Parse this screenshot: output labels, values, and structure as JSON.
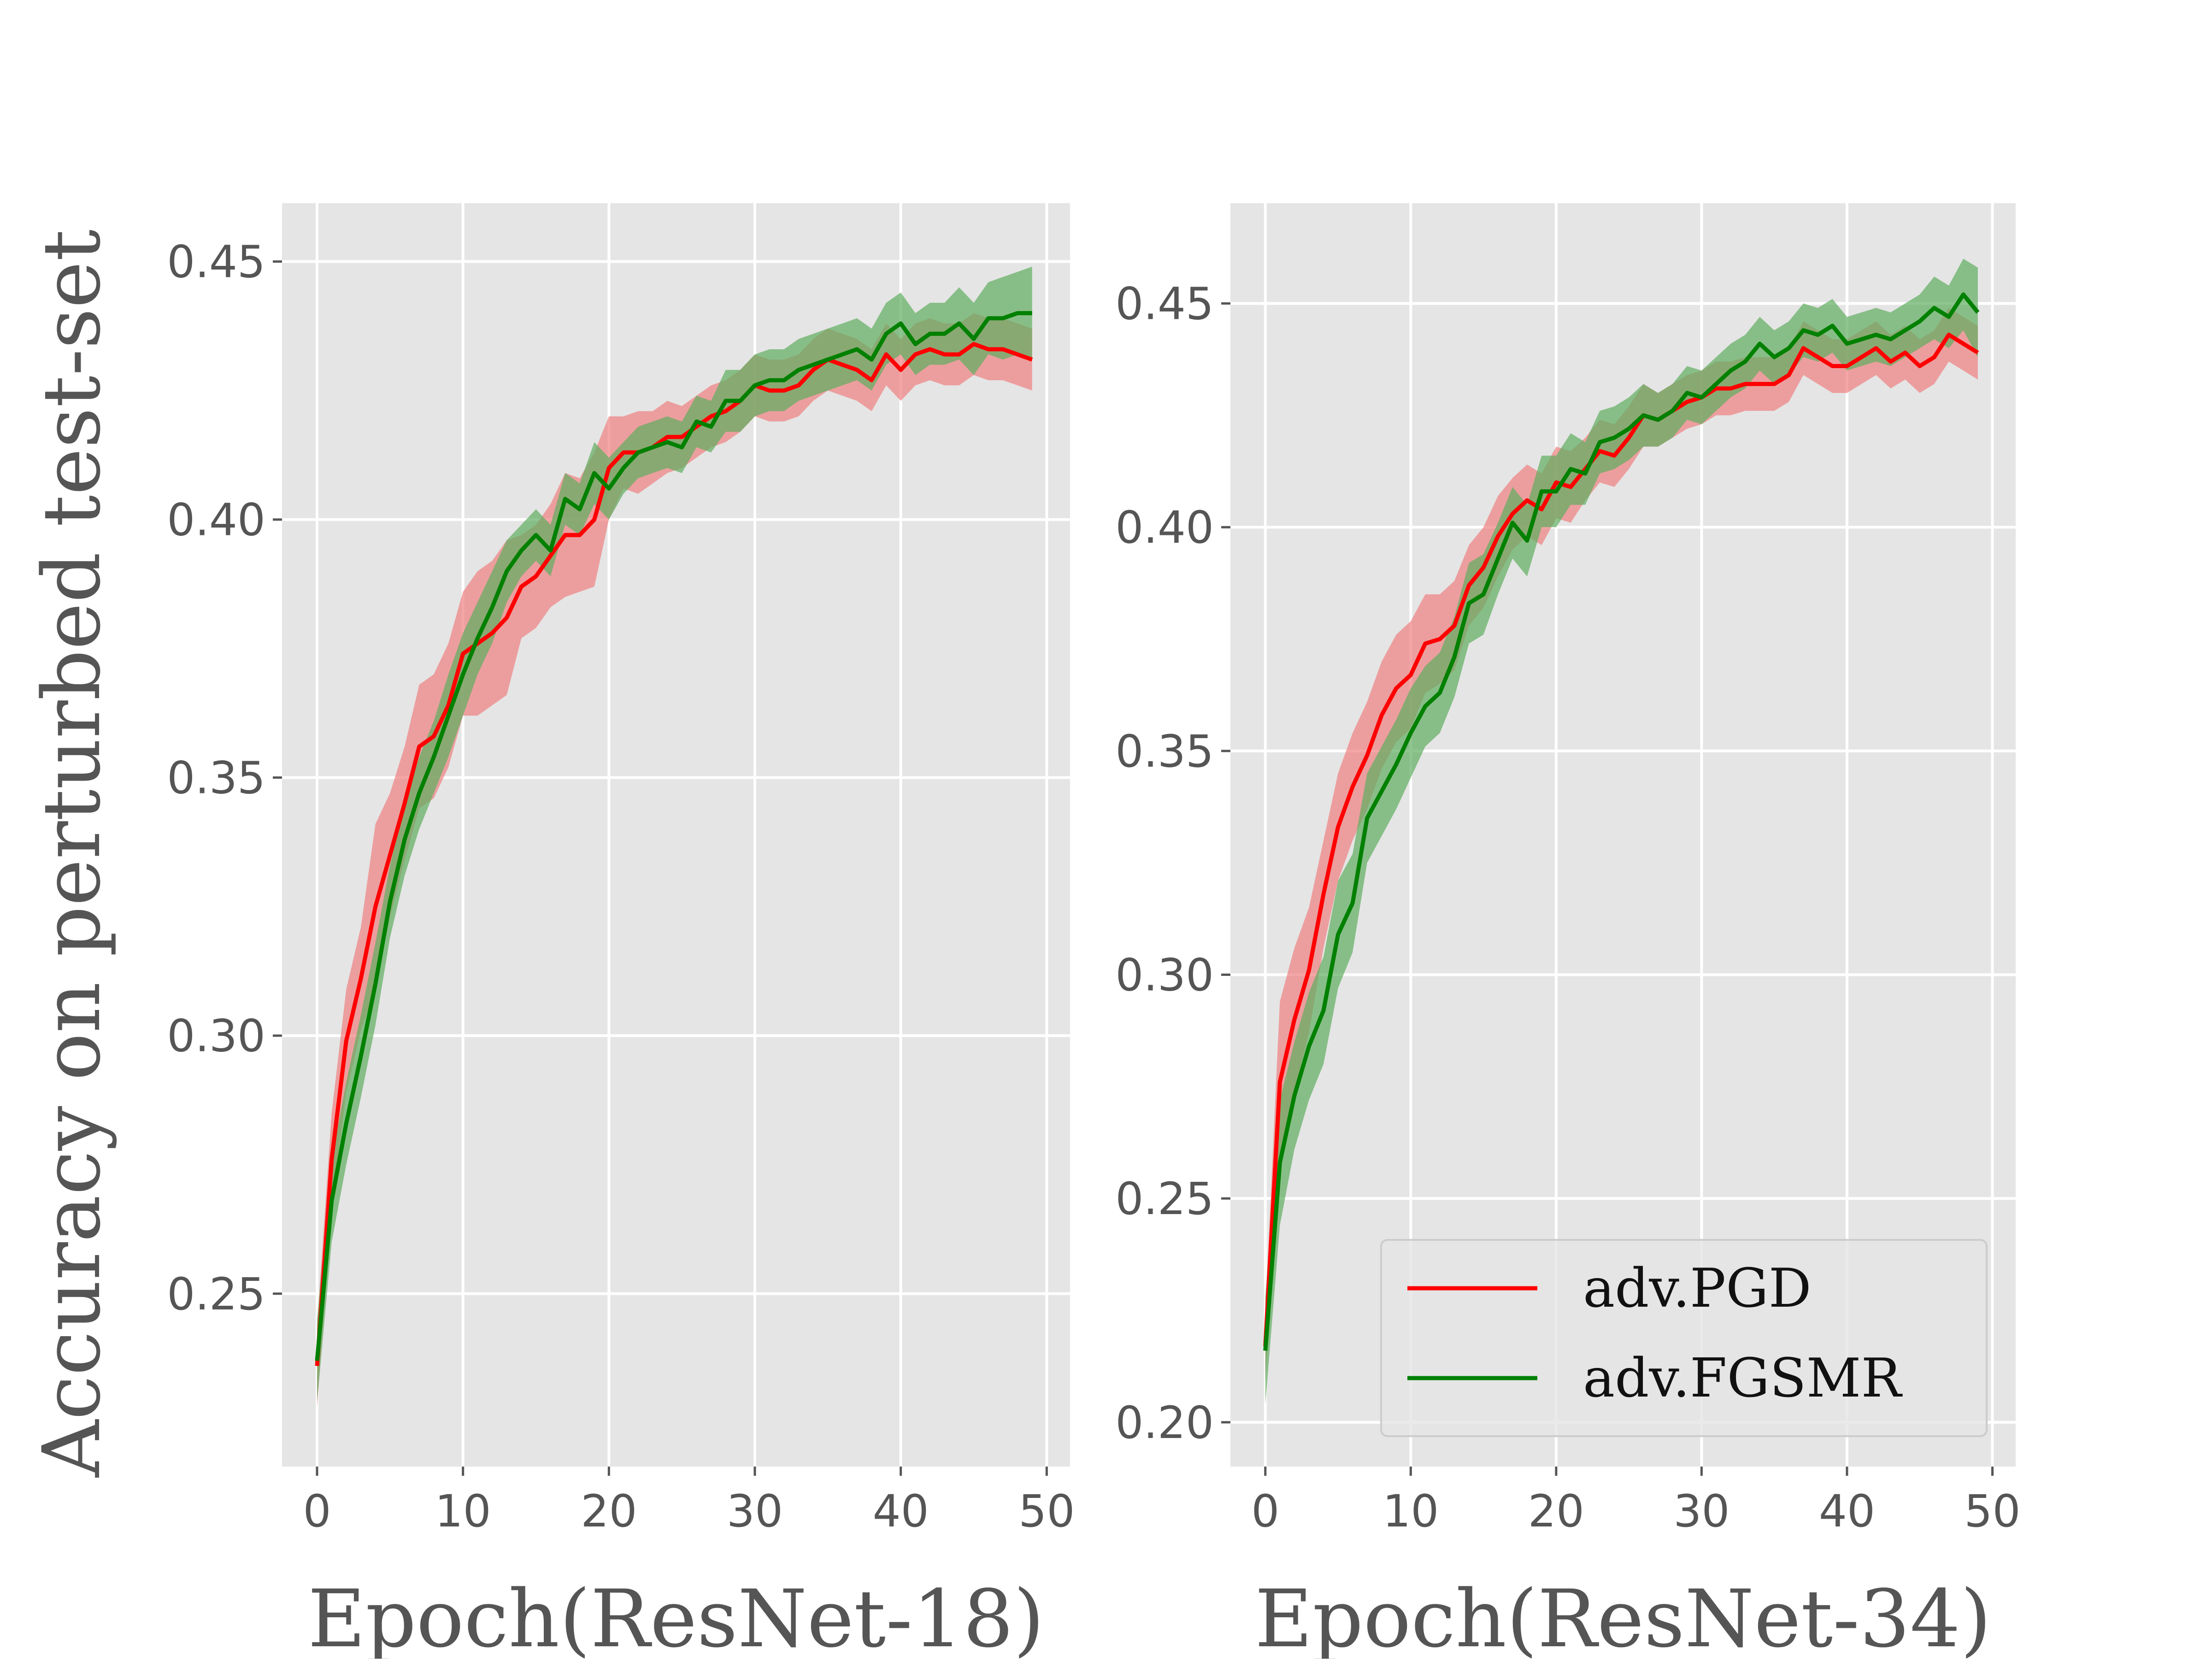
{
  "chart_data": [
    {
      "type": "line",
      "xlabel": "Epoch(ResNet-18)",
      "ylabel": "Accuracy on perturbed test-set",
      "xlim": [
        -2.4,
        51.6
      ],
      "ylim": [
        0.2165,
        0.4613
      ],
      "xticks": [
        0,
        10,
        20,
        30,
        40,
        50
      ],
      "xtick_labels": [
        "0",
        "10",
        "20",
        "30",
        "40",
        "50"
      ],
      "yticks": [
        0.25,
        0.3,
        0.35,
        0.4,
        0.45
      ],
      "ytick_labels": [
        "0.25",
        "0.30",
        "0.35",
        "0.40",
        "0.45"
      ],
      "grid": true,
      "x": [
        0,
        1,
        2,
        3,
        4,
        5,
        6,
        7,
        8,
        9,
        10,
        11,
        12,
        13,
        14,
        15,
        16,
        17,
        18,
        19,
        20,
        21,
        22,
        23,
        24,
        25,
        26,
        27,
        28,
        29,
        30,
        31,
        32,
        33,
        34,
        35,
        36,
        37,
        38,
        39,
        40,
        41,
        42,
        43,
        44,
        45,
        46,
        47,
        48,
        49
      ],
      "series": [
        {
          "name": "adv.PGD",
          "color": "#ff0000",
          "band_color": "#f08080",
          "values": [
            0.236,
            0.276,
            0.299,
            0.311,
            0.325,
            0.335,
            0.345,
            0.356,
            0.358,
            0.364,
            0.374,
            0.376,
            0.378,
            0.381,
            0.387,
            0.389,
            0.393,
            0.397,
            0.397,
            0.4,
            0.41,
            0.413,
            0.413,
            0.414,
            0.416,
            0.416,
            0.418,
            0.42,
            0.421,
            0.423,
            0.426,
            0.425,
            0.425,
            0.426,
            0.429,
            0.431,
            0.43,
            0.429,
            0.427,
            0.432,
            0.429,
            0.432,
            0.433,
            0.432,
            0.432,
            0.434,
            0.433,
            0.433,
            0.432,
            0.431
          ],
          "band": [
            0.008,
            0.009,
            0.01,
            0.01,
            0.016,
            0.012,
            0.011,
            0.012,
            0.012,
            0.012,
            0.012,
            0.014,
            0.014,
            0.015,
            0.01,
            0.01,
            0.01,
            0.012,
            0.011,
            0.013,
            0.01,
            0.007,
            0.008,
            0.007,
            0.007,
            0.006,
            0.006,
            0.006,
            0.006,
            0.006,
            0.006,
            0.006,
            0.006,
            0.006,
            0.006,
            0.006,
            0.006,
            0.006,
            0.006,
            0.006,
            0.006,
            0.006,
            0.006,
            0.006,
            0.006,
            0.006,
            0.006,
            0.006,
            0.006,
            0.006
          ]
        },
        {
          "name": "adv.FGSMR",
          "color": "#008000",
          "band_color": "#5fae5f",
          "values": [
            0.237,
            0.268,
            0.283,
            0.296,
            0.31,
            0.326,
            0.338,
            0.347,
            0.354,
            0.362,
            0.37,
            0.377,
            0.383,
            0.39,
            0.394,
            0.397,
            0.394,
            0.404,
            0.402,
            0.409,
            0.406,
            0.41,
            0.413,
            0.414,
            0.415,
            0.414,
            0.419,
            0.418,
            0.423,
            0.423,
            0.426,
            0.427,
            0.427,
            0.429,
            0.43,
            0.431,
            0.432,
            0.433,
            0.431,
            0.436,
            0.438,
            0.434,
            0.436,
            0.436,
            0.438,
            0.435,
            0.439,
            0.439,
            0.44,
            0.44
          ],
          "band": [
            0.008,
            0.008,
            0.008,
            0.008,
            0.008,
            0.007,
            0.007,
            0.007,
            0.007,
            0.008,
            0.008,
            0.007,
            0.007,
            0.006,
            0.005,
            0.005,
            0.005,
            0.005,
            0.005,
            0.006,
            0.006,
            0.005,
            0.005,
            0.005,
            0.005,
            0.005,
            0.005,
            0.005,
            0.006,
            0.006,
            0.006,
            0.006,
            0.006,
            0.006,
            0.006,
            0.006,
            0.006,
            0.006,
            0.006,
            0.006,
            0.006,
            0.006,
            0.006,
            0.006,
            0.007,
            0.007,
            0.007,
            0.008,
            0.008,
            0.009
          ]
        }
      ]
    },
    {
      "type": "line",
      "xlabel": "Epoch(ResNet-34)",
      "ylabel": "",
      "xlim": [
        -2.4,
        51.6
      ],
      "ylim": [
        0.1901,
        0.4724
      ],
      "xticks": [
        0,
        10,
        20,
        30,
        40,
        50
      ],
      "xtick_labels": [
        "0",
        "10",
        "20",
        "30",
        "40",
        "50"
      ],
      "yticks": [
        0.2,
        0.25,
        0.3,
        0.35,
        0.4,
        0.45
      ],
      "ytick_labels": [
        "0.20",
        "0.25",
        "0.30",
        "0.35",
        "0.40",
        "0.45"
      ],
      "grid": true,
      "legend": {
        "position": "lower-right",
        "entries": [
          "adv.PGD",
          "adv.FGSMR"
        ]
      },
      "x": [
        0,
        1,
        2,
        3,
        4,
        5,
        6,
        7,
        8,
        9,
        10,
        11,
        12,
        13,
        14,
        15,
        16,
        17,
        18,
        19,
        20,
        21,
        22,
        23,
        24,
        25,
        26,
        27,
        28,
        29,
        30,
        31,
        32,
        33,
        34,
        35,
        36,
        37,
        38,
        39,
        40,
        41,
        42,
        43,
        44,
        45,
        46,
        47,
        48,
        49
      ],
      "series": [
        {
          "name": "adv.PGD",
          "color": "#ff0000",
          "band_color": "#f08080",
          "values": [
            0.217,
            0.276,
            0.29,
            0.301,
            0.318,
            0.333,
            0.342,
            0.349,
            0.358,
            0.364,
            0.367,
            0.374,
            0.375,
            0.378,
            0.387,
            0.391,
            0.398,
            0.403,
            0.406,
            0.404,
            0.41,
            0.409,
            0.413,
            0.417,
            0.416,
            0.42,
            0.425,
            0.424,
            0.426,
            0.428,
            0.429,
            0.431,
            0.431,
            0.432,
            0.432,
            0.432,
            0.434,
            0.44,
            0.438,
            0.436,
            0.436,
            0.438,
            0.44,
            0.437,
            0.439,
            0.436,
            0.438,
            0.443,
            0.441,
            0.439
          ],
          "band": [
            0.008,
            0.018,
            0.016,
            0.014,
            0.012,
            0.012,
            0.012,
            0.012,
            0.012,
            0.012,
            0.012,
            0.011,
            0.01,
            0.01,
            0.009,
            0.009,
            0.009,
            0.008,
            0.008,
            0.008,
            0.008,
            0.008,
            0.007,
            0.007,
            0.007,
            0.007,
            0.007,
            0.006,
            0.006,
            0.006,
            0.006,
            0.006,
            0.006,
            0.006,
            0.006,
            0.006,
            0.006,
            0.006,
            0.006,
            0.006,
            0.006,
            0.006,
            0.006,
            0.006,
            0.006,
            0.006,
            0.006,
            0.006,
            0.006,
            0.006
          ]
        },
        {
          "name": "adv.FGSMR",
          "color": "#008000",
          "band_color": "#5fae5f",
          "values": [
            0.216,
            0.258,
            0.273,
            0.284,
            0.292,
            0.309,
            0.316,
            0.335,
            0.341,
            0.347,
            0.354,
            0.36,
            0.363,
            0.371,
            0.383,
            0.385,
            0.393,
            0.401,
            0.397,
            0.408,
            0.408,
            0.413,
            0.412,
            0.419,
            0.42,
            0.422,
            0.425,
            0.424,
            0.426,
            0.43,
            0.429,
            0.432,
            0.435,
            0.437,
            0.441,
            0.438,
            0.44,
            0.444,
            0.443,
            0.445,
            0.441,
            0.442,
            0.443,
            0.442,
            0.444,
            0.446,
            0.449,
            0.447,
            0.452,
            0.448
          ],
          "band": [
            0.012,
            0.014,
            0.012,
            0.012,
            0.012,
            0.012,
            0.011,
            0.01,
            0.01,
            0.01,
            0.01,
            0.009,
            0.009,
            0.009,
            0.009,
            0.009,
            0.008,
            0.008,
            0.008,
            0.008,
            0.008,
            0.008,
            0.007,
            0.007,
            0.007,
            0.007,
            0.007,
            0.006,
            0.006,
            0.006,
            0.006,
            0.006,
            0.006,
            0.006,
            0.006,
            0.006,
            0.006,
            0.006,
            0.006,
            0.006,
            0.006,
            0.006,
            0.006,
            0.006,
            0.006,
            0.006,
            0.007,
            0.007,
            0.008,
            0.01
          ]
        }
      ]
    }
  ]
}
